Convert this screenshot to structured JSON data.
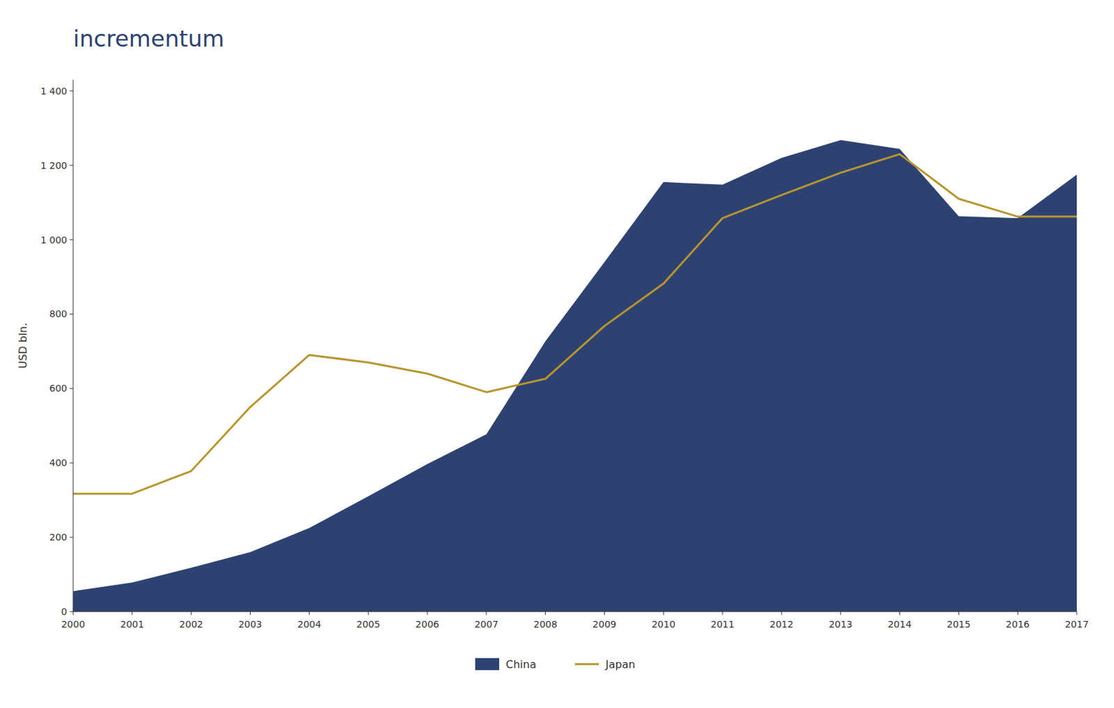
{
  "chart_data": {
    "type": "line",
    "title": "incrementum",
    "x": [
      2000,
      2001,
      2002,
      2003,
      2004,
      2005,
      2006,
      2007,
      2008,
      2009,
      2010,
      2011,
      2012,
      2013,
      2014,
      2015,
      2016,
      2017
    ],
    "series": [
      {
        "name": "China",
        "type": "area",
        "color": "#2E4272",
        "values": [
          55,
          78,
          118,
          160,
          225,
          310,
          397,
          477,
          727,
          940,
          1155,
          1148,
          1220,
          1268,
          1244,
          1063,
          1058,
          1175
        ]
      },
      {
        "name": "Japan",
        "type": "line",
        "color": "#B8962E",
        "values": [
          317,
          317,
          378,
          550,
          690,
          670,
          640,
          590,
          626,
          768,
          882,
          1058,
          1120,
          1180,
          1230,
          1110,
          1062,
          1062
        ]
      }
    ],
    "ylabel": "USD bln.",
    "xlim": [
      2000,
      2017
    ],
    "xticks": [
      2000,
      2001,
      2002,
      2003,
      2004,
      2005,
      2006,
      2007,
      2008,
      2009,
      2010,
      2011,
      2012,
      2013,
      2014,
      2015,
      2016,
      2017
    ],
    "ylim": [
      0,
      1430
    ],
    "yticks": [
      0,
      200,
      400,
      600,
      800,
      {
        "value": 1000,
        "label": "1 000"
      },
      {
        "value": 1200,
        "label": "1 200"
      },
      {
        "value": 1400,
        "label": "1 400"
      }
    ],
    "grid": false,
    "legend": "bottom"
  }
}
